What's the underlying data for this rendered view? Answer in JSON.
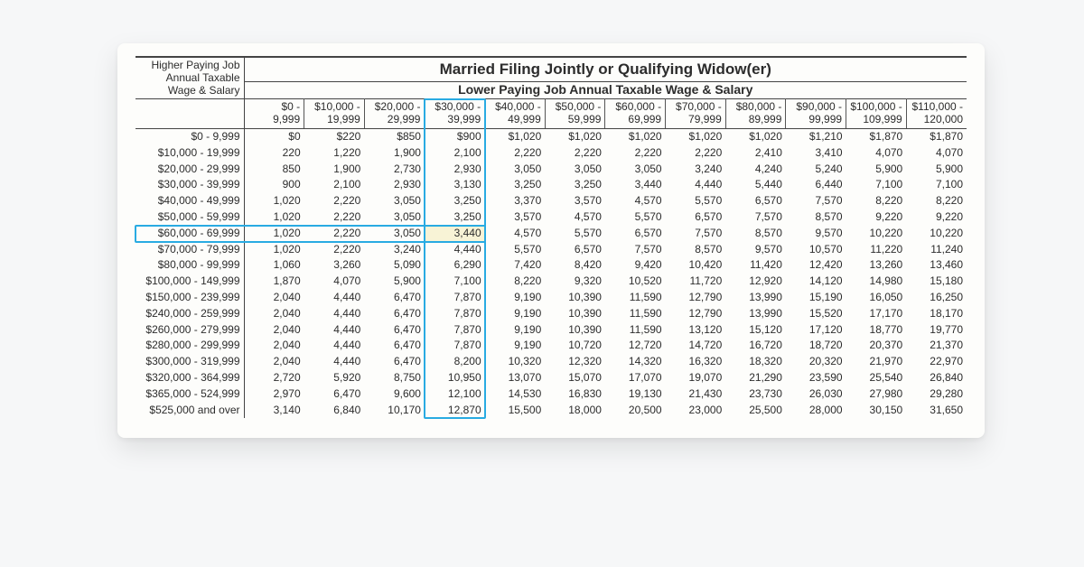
{
  "title_main": "Married Filing Jointly or Qualifying Widow(er)",
  "title_sub": "Lower Paying Job Annual Taxable Wage & Salary",
  "row_header": "Higher Paying Job\nAnnual Taxable\nWage & Salary",
  "columns": [
    {
      "top": "$0 -",
      "bot": "9,999"
    },
    {
      "top": "$10,000 -",
      "bot": "19,999"
    },
    {
      "top": "$20,000 -",
      "bot": "29,999"
    },
    {
      "top": "$30,000 -",
      "bot": "39,999"
    },
    {
      "top": "$40,000 -",
      "bot": "49,999"
    },
    {
      "top": "$50,000 -",
      "bot": "59,999"
    },
    {
      "top": "$60,000 -",
      "bot": "69,999"
    },
    {
      "top": "$70,000 -",
      "bot": "79,999"
    },
    {
      "top": "$80,000 -",
      "bot": "89,999"
    },
    {
      "top": "$90,000 -",
      "bot": "99,999"
    },
    {
      "top": "$100,000 -",
      "bot": "109,999"
    },
    {
      "top": "$110,000 -",
      "bot": "120,000"
    }
  ],
  "highlight": {
    "col_index": 3,
    "row_index": 6
  },
  "rows": [
    {
      "label": "$0 -   9,999",
      "cells": [
        "$0",
        "$220",
        "$850",
        "$900",
        "$1,020",
        "$1,020",
        "$1,020",
        "$1,020",
        "$1,020",
        "$1,210",
        "$1,870",
        "$1,870"
      ]
    },
    {
      "label": "$10,000 -  19,999",
      "cells": [
        "220",
        "1,220",
        "1,900",
        "2,100",
        "2,220",
        "2,220",
        "2,220",
        "2,220",
        "2,410",
        "3,410",
        "4,070",
        "4,070"
      ]
    },
    {
      "label": "$20,000 -  29,999",
      "cells": [
        "850",
        "1,900",
        "2,730",
        "2,930",
        "3,050",
        "3,050",
        "3,050",
        "3,240",
        "4,240",
        "5,240",
        "5,900",
        "5,900"
      ]
    },
    {
      "label": "$30,000 -  39,999",
      "cells": [
        "900",
        "2,100",
        "2,930",
        "3,130",
        "3,250",
        "3,250",
        "3,440",
        "4,440",
        "5,440",
        "6,440",
        "7,100",
        "7,100"
      ]
    },
    {
      "label": "$40,000 -  49,999",
      "cells": [
        "1,020",
        "2,220",
        "3,050",
        "3,250",
        "3,370",
        "3,570",
        "4,570",
        "5,570",
        "6,570",
        "7,570",
        "8,220",
        "8,220"
      ]
    },
    {
      "label": "$50,000 -  59,999",
      "cells": [
        "1,020",
        "2,220",
        "3,050",
        "3,250",
        "3,570",
        "4,570",
        "5,570",
        "6,570",
        "7,570",
        "8,570",
        "9,220",
        "9,220"
      ]
    },
    {
      "label": "$60,000 -  69,999",
      "cells": [
        "1,020",
        "2,220",
        "3,050",
        "3,440",
        "4,570",
        "5,570",
        "6,570",
        "7,570",
        "8,570",
        "9,570",
        "10,220",
        "10,220"
      ]
    },
    {
      "label": "$70,000 -  79,999",
      "cells": [
        "1,020",
        "2,220",
        "3,240",
        "4,440",
        "5,570",
        "6,570",
        "7,570",
        "8,570",
        "9,570",
        "10,570",
        "11,220",
        "11,240"
      ]
    },
    {
      "label": "$80,000 -  99,999",
      "cells": [
        "1,060",
        "3,260",
        "5,090",
        "6,290",
        "7,420",
        "8,420",
        "9,420",
        "10,420",
        "11,420",
        "12,420",
        "13,260",
        "13,460"
      ]
    },
    {
      "label": "$100,000 - 149,999",
      "cells": [
        "1,870",
        "4,070",
        "5,900",
        "7,100",
        "8,220",
        "9,320",
        "10,520",
        "11,720",
        "12,920",
        "14,120",
        "14,980",
        "15,180"
      ]
    },
    {
      "label": "$150,000 - 239,999",
      "cells": [
        "2,040",
        "4,440",
        "6,470",
        "7,870",
        "9,190",
        "10,390",
        "11,590",
        "12,790",
        "13,990",
        "15,190",
        "16,050",
        "16,250"
      ]
    },
    {
      "label": "$240,000 - 259,999",
      "cells": [
        "2,040",
        "4,440",
        "6,470",
        "7,870",
        "9,190",
        "10,390",
        "11,590",
        "12,790",
        "13,990",
        "15,520",
        "17,170",
        "18,170"
      ]
    },
    {
      "label": "$260,000 - 279,999",
      "cells": [
        "2,040",
        "4,440",
        "6,470",
        "7,870",
        "9,190",
        "10,390",
        "11,590",
        "13,120",
        "15,120",
        "17,120",
        "18,770",
        "19,770"
      ]
    },
    {
      "label": "$280,000 - 299,999",
      "cells": [
        "2,040",
        "4,440",
        "6,470",
        "7,870",
        "9,190",
        "10,720",
        "12,720",
        "14,720",
        "16,720",
        "18,720",
        "20,370",
        "21,370"
      ]
    },
    {
      "label": "$300,000 - 319,999",
      "cells": [
        "2,040",
        "4,440",
        "6,470",
        "8,200",
        "10,320",
        "12,320",
        "14,320",
        "16,320",
        "18,320",
        "20,320",
        "21,970",
        "22,970"
      ]
    },
    {
      "label": "$320,000 - 364,999",
      "cells": [
        "2,720",
        "5,920",
        "8,750",
        "10,950",
        "13,070",
        "15,070",
        "17,070",
        "19,070",
        "21,290",
        "23,590",
        "25,540",
        "26,840"
      ]
    },
    {
      "label": "$365,000 - 524,999",
      "cells": [
        "2,970",
        "6,470",
        "9,600",
        "12,100",
        "14,530",
        "16,830",
        "19,130",
        "21,430",
        "23,730",
        "26,030",
        "27,980",
        "29,280"
      ]
    },
    {
      "label": "$525,000 and over",
      "cells": [
        "3,140",
        "6,840",
        "10,170",
        "12,870",
        "15,500",
        "18,000",
        "20,500",
        "23,000",
        "25,500",
        "28,000",
        "30,150",
        "31,650"
      ]
    }
  ],
  "style": {
    "highlight_border": "#29abe2",
    "highlight_fill": "#f8f3d6",
    "line_color": "#444444",
    "paper_bg": "#fdfdfb",
    "font_family": "Arial",
    "title_fontsize_pt": 13,
    "subtitle_fontsize_pt": 11,
    "body_fontsize_pt": 9
  }
}
